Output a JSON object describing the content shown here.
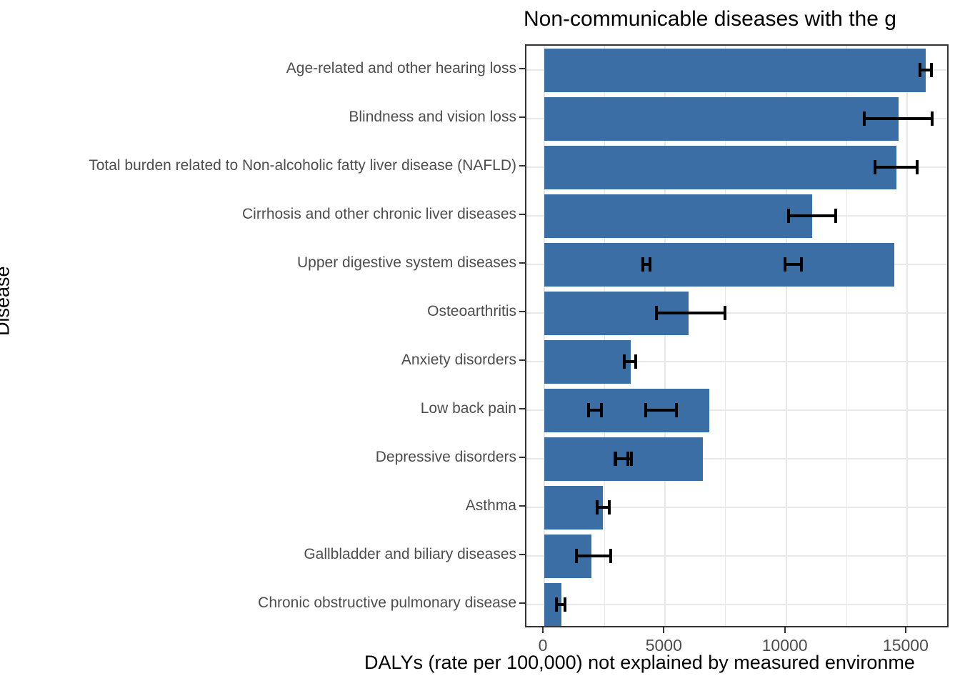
{
  "chart_data": {
    "type": "bar",
    "orientation": "horizontal",
    "title": "Non-communicable diseases with the g",
    "xlabel": "DALYs (rate per 100,000) not explained by measured environme",
    "ylabel": "Disease",
    "x_ticks": [
      0,
      5000,
      10000,
      15000
    ],
    "x_minor_ticks": [
      2500,
      7500,
      12500
    ],
    "xlim": [
      -740,
      16780
    ],
    "grid": true,
    "legend": "none",
    "bar_color": "#3A6EA5",
    "error_color": "#000000",
    "categories": [
      "Age-related and other hearing loss",
      "Blindness and vision loss",
      "Total burden related to Non-alcoholic fatty liver disease (NAFLD)",
      "Cirrhosis and other chronic liver diseases",
      "Upper digestive system diseases",
      "Osteoarthritis",
      "Anxiety disorders",
      "Low back pain",
      "Depressive disorders",
      "Asthma",
      "Gallbladder and biliary diseases",
      "Chronic obstructive pulmonary disease"
    ],
    "values": [
      15780,
      14650,
      14560,
      11070,
      14470,
      5970,
      3570,
      6820,
      6560,
      2420,
      1950,
      710
    ],
    "error_bars": [
      [
        [
          15530,
          16010
        ]
      ],
      [
        [
          13240,
          16030
        ]
      ],
      [
        [
          13670,
          15410
        ]
      ],
      [
        [
          10100,
          12050
        ]
      ],
      [
        [
          4080,
          4370
        ],
        [
          9950,
          10630
        ]
      ],
      [
        [
          4640,
          7470
        ]
      ],
      [
        [
          3300,
          3790
        ]
      ],
      [
        [
          1830,
          2360
        ],
        [
          4190,
          5460
        ]
      ],
      [
        [
          2920,
          3460
        ],
        [
          2960,
          3600
        ]
      ],
      [
        [
          2190,
          2690
        ]
      ],
      [
        [
          1330,
          2750
        ]
      ],
      [
        [
          500,
          860
        ]
      ]
    ]
  }
}
